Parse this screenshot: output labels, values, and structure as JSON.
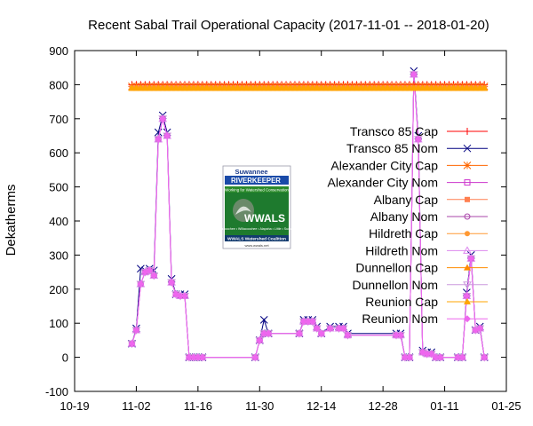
{
  "chart_data": {
    "type": "line",
    "title": "Recent Sabal Trail Operational Capacity (2017-11-01 -- 2018-01-20)",
    "xlabel": "",
    "ylabel": "Dekatherms",
    "x_tick_labels": [
      "10-19",
      "11-02",
      "11-16",
      "11-30",
      "12-14",
      "12-28",
      "01-11",
      "01-25"
    ],
    "y_tick_labels": [
      "-100",
      "0",
      "100",
      "200",
      "300",
      "400",
      "500",
      "600",
      "700",
      "800",
      "900"
    ],
    "xlim": [
      "2017-10-19",
      "2018-01-25"
    ],
    "ylim": [
      -100,
      900
    ],
    "grid": false,
    "legend_position": "right",
    "logo": {
      "name": "Suwannee Riverkeeper / WWALS Watershed Coalition logo",
      "text_top": "Suwannee RIVERKEEPER",
      "text_tagline": "Working for Watershed Conservation",
      "text_main": "WWALS",
      "text_rivers": "Withlacoochee • Willacoochee • Alapaha • Little • Suwannee",
      "text_bottom": "WWALS Watershed Coalition",
      "text_url": "www.wwals.net"
    },
    "series": [
      {
        "name": "Transco 85 Cap",
        "color": "#ff0000",
        "marker": "plus",
        "start": "2017-11-01",
        "end": "2018-01-20",
        "value": 800
      },
      {
        "name": "Transco 85 Nom",
        "color": "#000080",
        "marker": "cross",
        "x": [
          "2017-11-01",
          "2017-11-02",
          "2017-11-03",
          "2017-11-04",
          "2017-11-05",
          "2017-11-06",
          "2017-11-07",
          "2017-11-08",
          "2017-11-09",
          "2017-11-10",
          "2017-11-11",
          "2017-11-12",
          "2017-11-13",
          "2017-11-14",
          "2017-11-15",
          "2017-11-16",
          "2017-11-17",
          "2017-11-29",
          "2017-11-30",
          "2017-12-01",
          "2017-12-02",
          "2017-12-09",
          "2017-12-10",
          "2017-12-11",
          "2017-12-12",
          "2017-12-13",
          "2017-12-14",
          "2017-12-16",
          "2017-12-18",
          "2017-12-19",
          "2017-12-20",
          "2017-12-31",
          "2018-01-01",
          "2018-01-02",
          "2018-01-03",
          "2018-01-04",
          "2018-01-05",
          "2018-01-06",
          "2018-01-07",
          "2018-01-08",
          "2018-01-09",
          "2018-01-10",
          "2018-01-14",
          "2018-01-15",
          "2018-01-16",
          "2018-01-17",
          "2018-01-18",
          "2018-01-19",
          "2018-01-20"
        ],
        "y": [
          40,
          85,
          260,
          255,
          260,
          255,
          660,
          710,
          660,
          230,
          185,
          185,
          185,
          0,
          0,
          0,
          0,
          0,
          50,
          110,
          70,
          70,
          110,
          110,
          110,
          90,
          70,
          90,
          90,
          90,
          70,
          70,
          70,
          0,
          0,
          840,
          650,
          20,
          15,
          15,
          0,
          0,
          0,
          0,
          190,
          300,
          80,
          90,
          0
        ]
      },
      {
        "name": "Alexander City Cap",
        "color": "#ff6600",
        "marker": "star",
        "start": "2017-11-01",
        "end": "2018-01-20",
        "value": 795
      },
      {
        "name": "Alexander City Nom",
        "color": "#cc33cc",
        "marker": "square-open",
        "x": [
          "2017-11-01",
          "2017-11-02",
          "2017-11-03",
          "2017-11-04",
          "2017-11-05",
          "2017-11-06",
          "2017-11-07",
          "2017-11-08",
          "2017-11-09",
          "2017-11-10",
          "2017-11-11",
          "2017-11-12",
          "2017-11-13",
          "2017-11-14",
          "2017-11-15",
          "2017-11-16",
          "2017-11-17",
          "2017-11-29",
          "2017-11-30",
          "2017-12-01",
          "2017-12-02",
          "2017-12-09",
          "2017-12-10",
          "2017-12-11",
          "2017-12-12",
          "2017-12-13",
          "2017-12-14",
          "2017-12-16",
          "2017-12-18",
          "2017-12-19",
          "2017-12-20",
          "2017-12-31",
          "2018-01-01",
          "2018-01-02",
          "2018-01-03",
          "2018-01-04",
          "2018-01-05",
          "2018-01-06",
          "2018-01-07",
          "2018-01-08",
          "2018-01-09",
          "2018-01-10",
          "2018-01-14",
          "2018-01-15",
          "2018-01-16",
          "2018-01-17",
          "2018-01-18",
          "2018-01-19",
          "2018-01-20"
        ],
        "y": [
          40,
          80,
          215,
          250,
          255,
          240,
          640,
          700,
          650,
          220,
          185,
          180,
          180,
          0,
          0,
          0,
          0,
          0,
          50,
          70,
          70,
          70,
          105,
          105,
          105,
          85,
          70,
          85,
          85,
          85,
          65,
          65,
          65,
          0,
          0,
          830,
          640,
          15,
          10,
          10,
          0,
          0,
          0,
          0,
          180,
          290,
          80,
          85,
          0
        ]
      },
      {
        "name": "Albany Cap",
        "color": "#ff7f50",
        "marker": "square",
        "start": "2017-11-01",
        "end": "2018-01-20",
        "value": 790
      },
      {
        "name": "Albany Nom",
        "color": "#aa44aa",
        "marker": "circle-open",
        "x": [
          "2017-11-01",
          "2017-11-02",
          "2017-11-03",
          "2017-11-04",
          "2017-11-05",
          "2017-11-06",
          "2017-11-07",
          "2017-11-08",
          "2017-11-09",
          "2017-11-10",
          "2017-11-11",
          "2017-11-12",
          "2017-11-13",
          "2017-11-14",
          "2017-11-15",
          "2017-11-16",
          "2017-11-17",
          "2017-11-29",
          "2017-11-30",
          "2017-12-01",
          "2017-12-02",
          "2017-12-09",
          "2017-12-10",
          "2017-12-11",
          "2017-12-12",
          "2017-12-13",
          "2017-12-14",
          "2017-12-16",
          "2017-12-18",
          "2017-12-19",
          "2017-12-20",
          "2017-12-31",
          "2018-01-01",
          "2018-01-02",
          "2018-01-03",
          "2018-01-04",
          "2018-01-05",
          "2018-01-06",
          "2018-01-07",
          "2018-01-08",
          "2018-01-09",
          "2018-01-10",
          "2018-01-14",
          "2018-01-15",
          "2018-01-16",
          "2018-01-17",
          "2018-01-18",
          "2018-01-19",
          "2018-01-20"
        ],
        "y": [
          40,
          80,
          215,
          250,
          255,
          240,
          640,
          700,
          650,
          220,
          185,
          180,
          180,
          0,
          0,
          0,
          0,
          0,
          50,
          70,
          70,
          70,
          105,
          105,
          105,
          85,
          70,
          85,
          85,
          85,
          65,
          65,
          65,
          0,
          0,
          830,
          640,
          15,
          10,
          10,
          0,
          0,
          0,
          0,
          180,
          290,
          80,
          85,
          0
        ]
      },
      {
        "name": "Hildreth Cap",
        "color": "#ff9933",
        "marker": "dot",
        "start": "2017-11-01",
        "end": "2018-01-20",
        "value": 790
      },
      {
        "name": "Hildreth Nom",
        "color": "#dd88ee",
        "marker": "triangle-open",
        "x": [
          "2017-11-01",
          "2017-11-02",
          "2017-11-03",
          "2017-11-04",
          "2017-11-05",
          "2017-11-06",
          "2017-11-07",
          "2017-11-08",
          "2017-11-09",
          "2017-11-10",
          "2017-11-11",
          "2017-11-12",
          "2017-11-13",
          "2017-11-14",
          "2017-11-15",
          "2017-11-16",
          "2017-11-17",
          "2017-11-29",
          "2017-11-30",
          "2017-12-01",
          "2017-12-02",
          "2017-12-09",
          "2017-12-10",
          "2017-12-11",
          "2017-12-12",
          "2017-12-13",
          "2017-12-14",
          "2017-12-16",
          "2017-12-18",
          "2017-12-19",
          "2017-12-20",
          "2017-12-31",
          "2018-01-01",
          "2018-01-02",
          "2018-01-03",
          "2018-01-04",
          "2018-01-05",
          "2018-01-06",
          "2018-01-07",
          "2018-01-08",
          "2018-01-09",
          "2018-01-10",
          "2018-01-14",
          "2018-01-15",
          "2018-01-16",
          "2018-01-17",
          "2018-01-18",
          "2018-01-19",
          "2018-01-20"
        ],
        "y": [
          40,
          80,
          215,
          250,
          255,
          240,
          640,
          700,
          650,
          220,
          185,
          180,
          180,
          0,
          0,
          0,
          0,
          0,
          50,
          70,
          70,
          70,
          105,
          105,
          105,
          85,
          70,
          85,
          85,
          85,
          65,
          65,
          65,
          0,
          0,
          830,
          640,
          15,
          10,
          10,
          0,
          0,
          0,
          0,
          180,
          290,
          80,
          85,
          0
        ]
      },
      {
        "name": "Dunnellon Cap",
        "color": "#ff8c00",
        "marker": "triangle",
        "start": "2017-11-01",
        "end": "2018-01-20",
        "value": 790
      },
      {
        "name": "Dunnellon Nom",
        "color": "#cc99dd",
        "marker": "triangle-down-open",
        "x": [
          "2017-11-01",
          "2017-11-02",
          "2017-11-03",
          "2017-11-04",
          "2017-11-05",
          "2017-11-06",
          "2017-11-07",
          "2017-11-08",
          "2017-11-09",
          "2017-11-10",
          "2017-11-11",
          "2017-11-12",
          "2017-11-13",
          "2017-11-14",
          "2017-11-15",
          "2017-11-16",
          "2017-11-17",
          "2017-11-29",
          "2017-11-30",
          "2017-12-01",
          "2017-12-02",
          "2017-12-09",
          "2017-12-10",
          "2017-12-11",
          "2017-12-12",
          "2017-12-13",
          "2017-12-14",
          "2017-12-16",
          "2017-12-18",
          "2017-12-19",
          "2017-12-20",
          "2017-12-31",
          "2018-01-01",
          "2018-01-02",
          "2018-01-03",
          "2018-01-04",
          "2018-01-05",
          "2018-01-06",
          "2018-01-07",
          "2018-01-08",
          "2018-01-09",
          "2018-01-10",
          "2018-01-14",
          "2018-01-15",
          "2018-01-16",
          "2018-01-17",
          "2018-01-18",
          "2018-01-19",
          "2018-01-20"
        ],
        "y": [
          40,
          80,
          215,
          250,
          255,
          240,
          640,
          700,
          650,
          220,
          185,
          180,
          180,
          0,
          0,
          0,
          0,
          0,
          50,
          70,
          70,
          70,
          105,
          105,
          105,
          85,
          70,
          85,
          85,
          85,
          65,
          65,
          65,
          0,
          0,
          830,
          640,
          15,
          10,
          10,
          0,
          0,
          0,
          0,
          180,
          290,
          80,
          85,
          0
        ]
      },
      {
        "name": "Reunion Cap",
        "color": "#ffa500",
        "marker": "triangle",
        "start": "2017-11-01",
        "end": "2018-01-20",
        "value": 790
      },
      {
        "name": "Reunion Nom",
        "color": "#ee66ee",
        "marker": "diamond",
        "x": [
          "2017-11-01",
          "2017-11-02",
          "2017-11-03",
          "2017-11-04",
          "2017-11-05",
          "2017-11-06",
          "2017-11-07",
          "2017-11-08",
          "2017-11-09",
          "2017-11-10",
          "2017-11-11",
          "2017-11-12",
          "2017-11-13",
          "2017-11-14",
          "2017-11-15",
          "2017-11-16",
          "2017-11-17",
          "2017-11-29",
          "2017-11-30",
          "2017-12-01",
          "2017-12-02",
          "2017-12-09",
          "2017-12-10",
          "2017-12-11",
          "2017-12-12",
          "2017-12-13",
          "2017-12-14",
          "2017-12-16",
          "2017-12-18",
          "2017-12-19",
          "2017-12-20",
          "2017-12-31",
          "2018-01-01",
          "2018-01-02",
          "2018-01-03",
          "2018-01-04",
          "2018-01-05",
          "2018-01-06",
          "2018-01-07",
          "2018-01-08",
          "2018-01-09",
          "2018-01-10",
          "2018-01-14",
          "2018-01-15",
          "2018-01-16",
          "2018-01-17",
          "2018-01-18",
          "2018-01-19",
          "2018-01-20"
        ],
        "y": [
          40,
          80,
          215,
          250,
          255,
          240,
          640,
          700,
          650,
          220,
          185,
          180,
          180,
          0,
          0,
          0,
          0,
          0,
          50,
          70,
          70,
          70,
          105,
          105,
          105,
          85,
          70,
          85,
          85,
          85,
          65,
          65,
          65,
          0,
          0,
          830,
          640,
          15,
          10,
          10,
          0,
          0,
          0,
          0,
          180,
          290,
          80,
          85,
          0
        ]
      }
    ]
  }
}
